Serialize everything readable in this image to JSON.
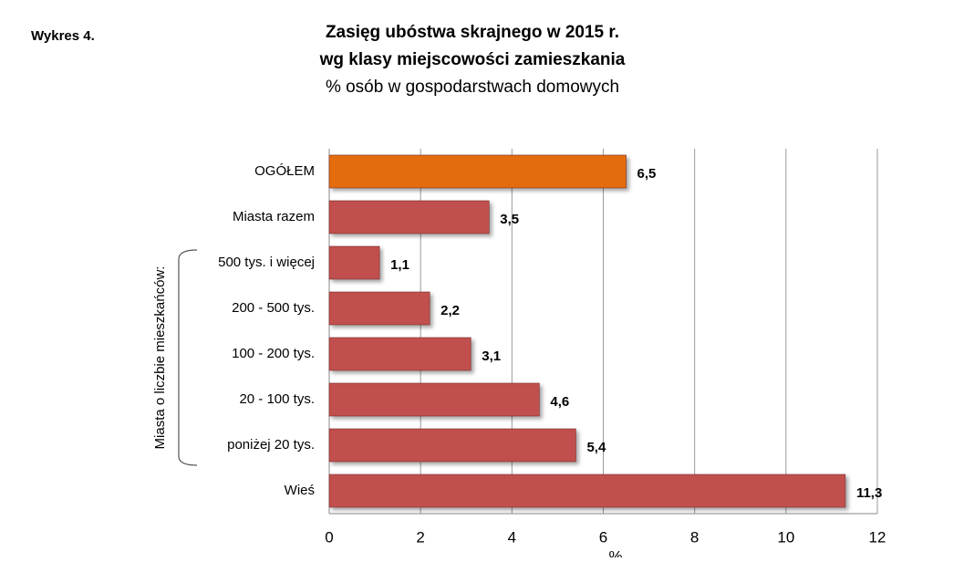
{
  "chart_data": {
    "type": "bar",
    "orientation": "horizontal",
    "figure_label": "Wykres 4.",
    "title": "Zasięg ubóstwa skrajnego w 2015 r.",
    "title_line2": "wg klasy miejscowości zamieszkania",
    "subtitle": "% osób w gospodarstwach domowych",
    "group_label": "Miasta o liczbie mieszkańców:",
    "x_label": "%",
    "categories": [
      "OGÓŁEM",
      "Miasta razem",
      "500 tys. i więcej",
      "200 - 500 tys.",
      "100 - 200 tys.",
      "20 - 100 tys.",
      "poniżej 20 tys.",
      "Wieś"
    ],
    "values": [
      6.5,
      3.5,
      1.1,
      2.2,
      3.1,
      4.6,
      5.4,
      11.3
    ],
    "value_labels": [
      "6,5",
      "3,5",
      "1,1",
      "2,2",
      "3,1",
      "4,6",
      "5,4",
      "11,3"
    ],
    "colors": [
      "#e46c0a",
      "#c0504d",
      "#c0504d",
      "#c0504d",
      "#c0504d",
      "#c0504d",
      "#c0504d",
      "#c0504d"
    ],
    "xlim": [
      0,
      12
    ],
    "xticks": [
      0,
      2,
      4,
      6,
      8,
      10,
      12
    ],
    "grid": true
  }
}
